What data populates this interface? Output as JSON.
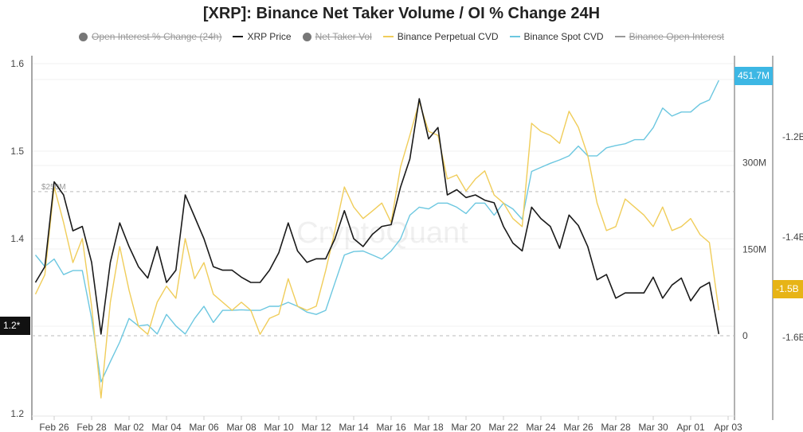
{
  "title": "[XRP]: Binance Net Taker Volume / OI % Change 24H",
  "watermark": "CryptoQuant",
  "legend": [
    {
      "label": "Open Interest % Change (24h)",
      "marker": "circle",
      "color": "#777777",
      "hidden": true
    },
    {
      "label": "XRP Price",
      "marker": "line",
      "color": "#1a1a1a",
      "hidden": false
    },
    {
      "label": "Net Taker Vol",
      "marker": "circle",
      "color": "#777777",
      "hidden": true
    },
    {
      "label": "Binance Perpetual CVD",
      "marker": "line",
      "color": "#f0cd5a",
      "hidden": false
    },
    {
      "label": "Binance Spot CVD",
      "marker": "line",
      "color": "#6cc7e0",
      "hidden": false
    },
    {
      "label": "Binance Open Interest",
      "marker": "line",
      "color": "#999999",
      "hidden": true
    }
  ],
  "chart_data": {
    "type": "line",
    "title": "[XRP]: Binance Net Taker Volume / OI % Change 24H",
    "x_ticks": [
      "Feb 26",
      "Feb 28",
      "Mar 02",
      "Mar 04",
      "Mar 06",
      "Mar 08",
      "Mar 10",
      "Mar 12",
      "Mar 14",
      "Mar 16",
      "Mar 18",
      "Mar 20",
      "Mar 22",
      "Mar 24",
      "Mar 26",
      "Mar 28",
      "Mar 30",
      "Apr 01",
      "Apr 03"
    ],
    "axes": {
      "left": {
        "ticks": [
          "1.6",
          "1.5",
          "1.4",
          "1.2"
        ],
        "range": [
          1.2,
          1.6
        ],
        "current_label": "1.2*",
        "current_color": "#111111"
      },
      "middle": {
        "ticks": [
          "300M",
          "150M",
          "0"
        ],
        "range_millions": [
          -150,
          480
        ],
        "current_label": "451.7M",
        "current_color": "#3db7e4"
      },
      "right": {
        "ticks": [
          "-1.2B",
          "-1.4B",
          "-1.6B"
        ],
        "range_billions": [
          -1.8,
          -1.1
        ],
        "current_label": "-1.5B",
        "current_color": "#e7b416"
      }
    },
    "reference_lines": [
      {
        "label": "$250M",
        "value_millions": 250,
        "axis": "middle"
      },
      {
        "label": "",
        "value_millions": 0,
        "axis": "middle"
      }
    ],
    "grid": true,
    "legend_position": "top",
    "x": [
      "Feb 25 00:00",
      "Feb 25 12:00",
      "Feb 26 00:00",
      "Feb 26 12:00",
      "Feb 27 00:00",
      "Feb 27 12:00",
      "Feb 28 00:00",
      "Feb 28 12:00",
      "Mar 01 00:00",
      "Mar 01 12:00",
      "Mar 02 00:00",
      "Mar 02 12:00",
      "Mar 03 00:00",
      "Mar 03 12:00",
      "Mar 04 00:00",
      "Mar 04 12:00",
      "Mar 05 00:00",
      "Mar 05 12:00",
      "Mar 06 00:00",
      "Mar 06 12:00",
      "Mar 07 00:00",
      "Mar 07 12:00",
      "Mar 08 00:00",
      "Mar 08 12:00",
      "Mar 09 00:00",
      "Mar 09 12:00",
      "Mar 10 00:00",
      "Mar 10 12:00",
      "Mar 11 00:00",
      "Mar 11 12:00",
      "Mar 12 00:00",
      "Mar 12 12:00",
      "Mar 13 00:00",
      "Mar 13 12:00",
      "Mar 14 00:00",
      "Mar 14 12:00",
      "Mar 15 00:00",
      "Mar 15 12:00",
      "Mar 16 00:00",
      "Mar 16 12:00",
      "Mar 17 00:00",
      "Mar 17 12:00",
      "Mar 18 00:00",
      "Mar 18 12:00",
      "Mar 19 00:00",
      "Mar 19 12:00",
      "Mar 20 00:00",
      "Mar 20 12:00",
      "Mar 21 00:00",
      "Mar 21 12:00",
      "Mar 22 00:00",
      "Mar 22 12:00",
      "Mar 23 00:00",
      "Mar 23 12:00",
      "Mar 24 00:00",
      "Mar 24 12:00",
      "Mar 25 00:00",
      "Mar 25 12:00",
      "Mar 26 00:00",
      "Mar 26 12:00",
      "Mar 27 00:00",
      "Mar 27 12:00",
      "Mar 28 00:00",
      "Mar 28 12:00",
      "Mar 29 00:00",
      "Mar 29 12:00",
      "Mar 30 00:00",
      "Mar 30 12:00",
      "Mar 31 00:00",
      "Mar 31 12:00",
      "Apr 01 00:00",
      "Apr 01 12:00",
      "Apr 02 00:00",
      "Apr 02 12:00"
    ],
    "series": [
      {
        "name": "XRP Price",
        "axis": "left",
        "color": "#1a1a1a",
        "values": [
          1.35,
          1.368,
          1.465,
          1.45,
          1.409,
          1.414,
          1.373,
          1.291,
          1.373,
          1.418,
          1.391,
          1.368,
          1.355,
          1.391,
          1.35,
          1.364,
          1.45,
          1.425,
          1.4,
          1.368,
          1.364,
          1.364,
          1.356,
          1.35,
          1.35,
          1.364,
          1.384,
          1.418,
          1.386,
          1.373,
          1.377,
          1.377,
          1.4,
          1.432,
          1.4,
          1.391,
          1.405,
          1.414,
          1.416,
          1.459,
          1.491,
          1.56,
          1.514,
          1.527,
          1.45,
          1.456,
          1.447,
          1.45,
          1.444,
          1.441,
          1.414,
          1.395,
          1.386,
          1.436,
          1.423,
          1.414,
          1.389,
          1.427,
          1.415,
          1.391,
          1.353,
          1.359,
          1.332,
          1.338,
          1.338,
          1.338,
          1.356,
          1.332,
          1.347,
          1.355,
          1.329,
          1.344,
          1.35,
          1.291
        ]
      },
      {
        "name": "Binance Perpetual CVD",
        "axis": "right",
        "unit": "B",
        "color": "#f0cd5a",
        "values": [
          -1.514,
          -1.475,
          -1.3,
          -1.371,
          -1.451,
          -1.403,
          -1.538,
          -1.721,
          -1.53,
          -1.419,
          -1.506,
          -1.578,
          -1.594,
          -1.53,
          -1.498,
          -1.522,
          -1.403,
          -1.483,
          -1.451,
          -1.514,
          -1.53,
          -1.546,
          -1.53,
          -1.546,
          -1.594,
          -1.562,
          -1.554,
          -1.483,
          -1.538,
          -1.546,
          -1.538,
          -1.467,
          -1.387,
          -1.3,
          -1.34,
          -1.363,
          -1.348,
          -1.332,
          -1.371,
          -1.26,
          -1.197,
          -1.13,
          -1.189,
          -1.197,
          -1.284,
          -1.276,
          -1.308,
          -1.284,
          -1.268,
          -1.316,
          -1.332,
          -1.363,
          -1.379,
          -1.173,
          -1.189,
          -1.197,
          -1.213,
          -1.149,
          -1.181,
          -1.237,
          -1.332,
          -1.387,
          -1.379,
          -1.324,
          -1.34,
          -1.356,
          -1.379,
          -1.34,
          -1.387,
          -1.379,
          -1.363,
          -1.395,
          -1.411,
          -1.546
        ]
      },
      {
        "name": "Binance Spot CVD",
        "axis": "middle",
        "unit": "M",
        "color": "#6cc7e0",
        "values": [
          140,
          120,
          133,
          106,
          113,
          113,
          30,
          -80,
          -45,
          -11,
          30,
          17,
          19,
          3,
          37,
          17,
          3,
          30,
          51,
          23,
          44,
          44,
          45,
          44,
          44,
          51,
          51,
          58,
          51,
          41,
          37,
          44,
          92,
          140,
          146,
          147,
          140,
          133,
          147,
          168,
          209,
          223,
          220,
          230,
          230,
          223,
          212,
          230,
          230,
          209,
          230,
          220,
          202,
          285,
          292,
          299,
          305,
          312,
          329,
          312,
          312,
          326,
          330,
          333,
          340,
          340,
          361,
          395,
          381,
          388,
          388,
          402,
          409,
          443
        ]
      }
    ]
  }
}
